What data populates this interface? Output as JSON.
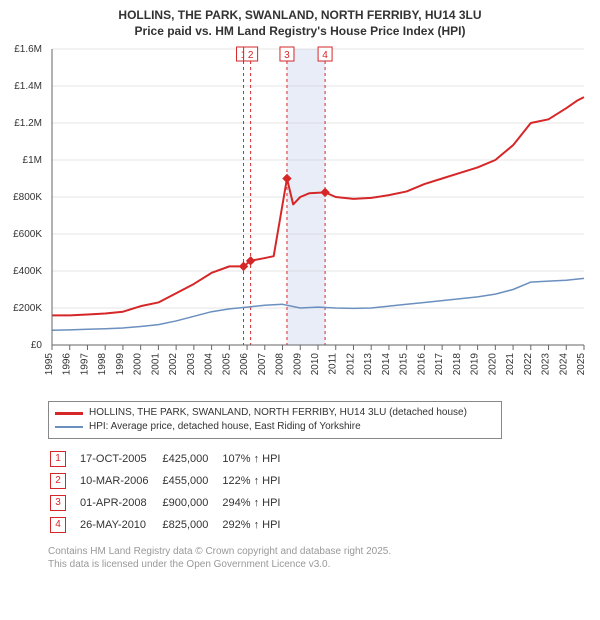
{
  "title_line1": "HOLLINS, THE PARK, SWANLAND, NORTH FERRIBY, HU14 3LU",
  "title_line2": "Price paid vs. HM Land Registry's House Price Index (HPI)",
  "chart": {
    "type": "line",
    "x_years": [
      1995,
      1996,
      1997,
      1998,
      1999,
      2000,
      2001,
      2002,
      2003,
      2004,
      2005,
      2006,
      2007,
      2008,
      2009,
      2010,
      2011,
      2012,
      2013,
      2014,
      2015,
      2016,
      2017,
      2018,
      2019,
      2020,
      2021,
      2022,
      2023,
      2024,
      2025
    ],
    "ylim": [
      0,
      1600000
    ],
    "ytick_step": 200000,
    "ytick_labels": [
      "£0",
      "£200K",
      "£400K",
      "£600K",
      "£800K",
      "£1M",
      "£1.2M",
      "£1.4M",
      "£1.6M"
    ],
    "background_color": "#ffffff",
    "grid_color": "#cccccc",
    "axis_color": "#666666",
    "tick_font_size": 10,
    "series": [
      {
        "name": "HOLLINS, THE PARK, SWANLAND, NORTH FERRIBY, HU14 3LU (detached house)",
        "color": "#d62728",
        "line_width": 2,
        "points": [
          [
            1995,
            160000
          ],
          [
            1996,
            160000
          ],
          [
            1997,
            165000
          ],
          [
            1998,
            170000
          ],
          [
            1999,
            180000
          ],
          [
            2000,
            210000
          ],
          [
            2001,
            230000
          ],
          [
            2002,
            280000
          ],
          [
            2003,
            330000
          ],
          [
            2004,
            390000
          ],
          [
            2005,
            425000
          ],
          [
            2005.8,
            425000
          ],
          [
            2006.2,
            455000
          ],
          [
            2007,
            470000
          ],
          [
            2007.5,
            480000
          ],
          [
            2008.25,
            900000
          ],
          [
            2008.6,
            760000
          ],
          [
            2009,
            800000
          ],
          [
            2009.5,
            820000
          ],
          [
            2010.4,
            825000
          ],
          [
            2011,
            800000
          ],
          [
            2012,
            790000
          ],
          [
            2013,
            795000
          ],
          [
            2014,
            810000
          ],
          [
            2015,
            830000
          ],
          [
            2016,
            870000
          ],
          [
            2017,
            900000
          ],
          [
            2018,
            930000
          ],
          [
            2019,
            960000
          ],
          [
            2020,
            1000000
          ],
          [
            2021,
            1080000
          ],
          [
            2022,
            1200000
          ],
          [
            2023,
            1220000
          ],
          [
            2024,
            1280000
          ],
          [
            2024.6,
            1320000
          ],
          [
            2025,
            1340000
          ]
        ]
      },
      {
        "name": "HPI: Average price, detached house, East Riding of Yorkshire",
        "color": "#6b8fbf",
        "line_width": 1.5,
        "points": [
          [
            1995,
            80000
          ],
          [
            1996,
            82000
          ],
          [
            1997,
            85000
          ],
          [
            1998,
            88000
          ],
          [
            1999,
            92000
          ],
          [
            2000,
            100000
          ],
          [
            2001,
            110000
          ],
          [
            2002,
            130000
          ],
          [
            2003,
            155000
          ],
          [
            2004,
            180000
          ],
          [
            2005,
            195000
          ],
          [
            2006,
            205000
          ],
          [
            2007,
            215000
          ],
          [
            2008,
            220000
          ],
          [
            2009,
            200000
          ],
          [
            2010,
            205000
          ],
          [
            2011,
            200000
          ],
          [
            2012,
            198000
          ],
          [
            2013,
            200000
          ],
          [
            2014,
            210000
          ],
          [
            2015,
            220000
          ],
          [
            2016,
            230000
          ],
          [
            2017,
            240000
          ],
          [
            2018,
            250000
          ],
          [
            2019,
            260000
          ],
          [
            2020,
            275000
          ],
          [
            2021,
            300000
          ],
          [
            2022,
            340000
          ],
          [
            2023,
            345000
          ],
          [
            2024,
            350000
          ],
          [
            2025,
            360000
          ]
        ]
      }
    ],
    "sale_markers": [
      {
        "n": "1",
        "year": 2005.8,
        "price": 425000
      },
      {
        "n": "2",
        "year": 2006.2,
        "price": 455000
      },
      {
        "n": "3",
        "year": 2008.25,
        "price": 900000
      },
      {
        "n": "4",
        "year": 2010.4,
        "price": 825000
      }
    ],
    "highlight_band": {
      "from": 2008.25,
      "to": 2010.4,
      "color": "#e8edf7"
    },
    "marker_line_color": "#d62728",
    "marker_dash": "3,3"
  },
  "legend": {
    "series1": "HOLLINS, THE PARK, SWANLAND, NORTH FERRIBY, HU14 3LU (detached house)",
    "series2": "HPI: Average price, detached house, East Riding of Yorkshire",
    "color1": "#d62728",
    "color2": "#6b8fbf"
  },
  "sales_table": {
    "rows": [
      {
        "n": "1",
        "date": "17-OCT-2005",
        "price": "£425,000",
        "pct": "107% ↑ HPI"
      },
      {
        "n": "2",
        "date": "10-MAR-2006",
        "price": "£455,000",
        "pct": "122% ↑ HPI"
      },
      {
        "n": "3",
        "date": "01-APR-2008",
        "price": "£900,000",
        "pct": "294% ↑ HPI"
      },
      {
        "n": "4",
        "date": "26-MAY-2010",
        "price": "£825,000",
        "pct": "292% ↑ HPI"
      }
    ]
  },
  "footer_line1": "Contains HM Land Registry data © Crown copyright and database right 2025.",
  "footer_line2": "This data is licensed under the Open Government Licence v3.0."
}
